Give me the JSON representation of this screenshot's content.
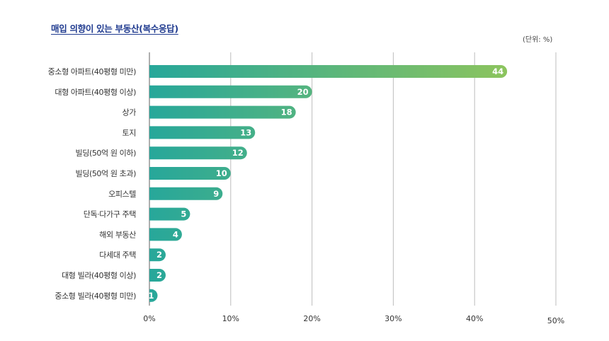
{
  "chart_data": {
    "type": "bar",
    "orientation": "horizontal",
    "title": "매입 의향이 있는 부동산(복수응답)",
    "unit": "(단위: %)",
    "categories": [
      "중소형 아파트(40평형 미만)",
      "대형 아파트(40평형 이상)",
      "상가",
      "토지",
      "빌딩(50억 원 이하)",
      "빌딩(50억 원 초과)",
      "오피스텔",
      "단독·다가구 주택",
      "해외 부동산",
      "다세대 주택",
      "대형 빌라(40평형 이상)",
      "중소형 빌라(40평형 미만)"
    ],
    "values": [
      44,
      20,
      18,
      13,
      12,
      10,
      9,
      5,
      4,
      2,
      2,
      1
    ],
    "xlim": [
      0,
      50
    ],
    "xticks": [
      "0%",
      "10%",
      "20%",
      "30%",
      "40%",
      "50%"
    ],
    "grid": true,
    "colors": {
      "bar_start": "#27a79a",
      "bar_end": "#8cc45e",
      "title": "#1f3a8f",
      "grid": "#bdbdbd"
    }
  }
}
